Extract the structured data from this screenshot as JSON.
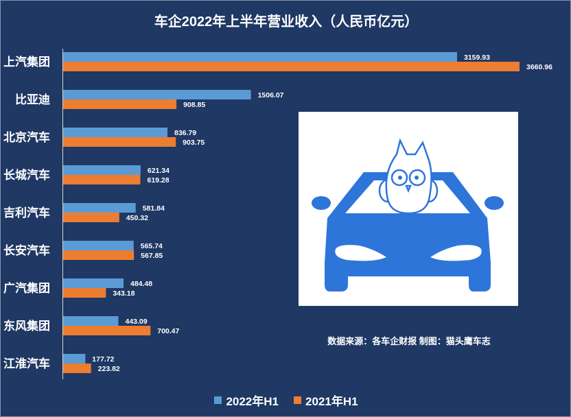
{
  "chart_data": {
    "type": "bar",
    "orientation": "horizontal",
    "title": "车企2022年上半年营业收入（人民币亿元）",
    "categories": [
      "上汽集团",
      "比亚迪",
      "北京汽车",
      "长城汽车",
      "吉利汽车",
      "长安汽车",
      "广汽集团",
      "东风集团",
      "江淮汽车"
    ],
    "series": [
      {
        "name": "2022年H1",
        "color": "#5b9bd5",
        "values": [
          3159.93,
          1506.07,
          836.79,
          621.34,
          581.84,
          565.74,
          484.48,
          443.09,
          177.72
        ]
      },
      {
        "name": "2021年H1",
        "color": "#ed7d31",
        "values": [
          3660.96,
          908.85,
          903.75,
          619.28,
          450.32,
          567.85,
          343.18,
          700.47,
          223.82
        ]
      }
    ],
    "value_labels": [
      [
        "3159.93",
        "1506.07",
        "836.79",
        "621.34",
        "581.84",
        "565.74",
        "484.48",
        "443.09",
        "177.72"
      ],
      [
        "3660.96",
        "908.85",
        "903.75",
        "619.28",
        "450.32",
        "567.85",
        "343.18",
        "700.47",
        "223.82"
      ]
    ],
    "xlim": [
      0,
      3660.96
    ],
    "grid": false,
    "legend_position": "bottom",
    "source_note": "数据来源：各车企财报  制图：猫头鹰车志"
  },
  "logo": {
    "name": "owl-on-car-logo",
    "color": "#2e75d9"
  }
}
